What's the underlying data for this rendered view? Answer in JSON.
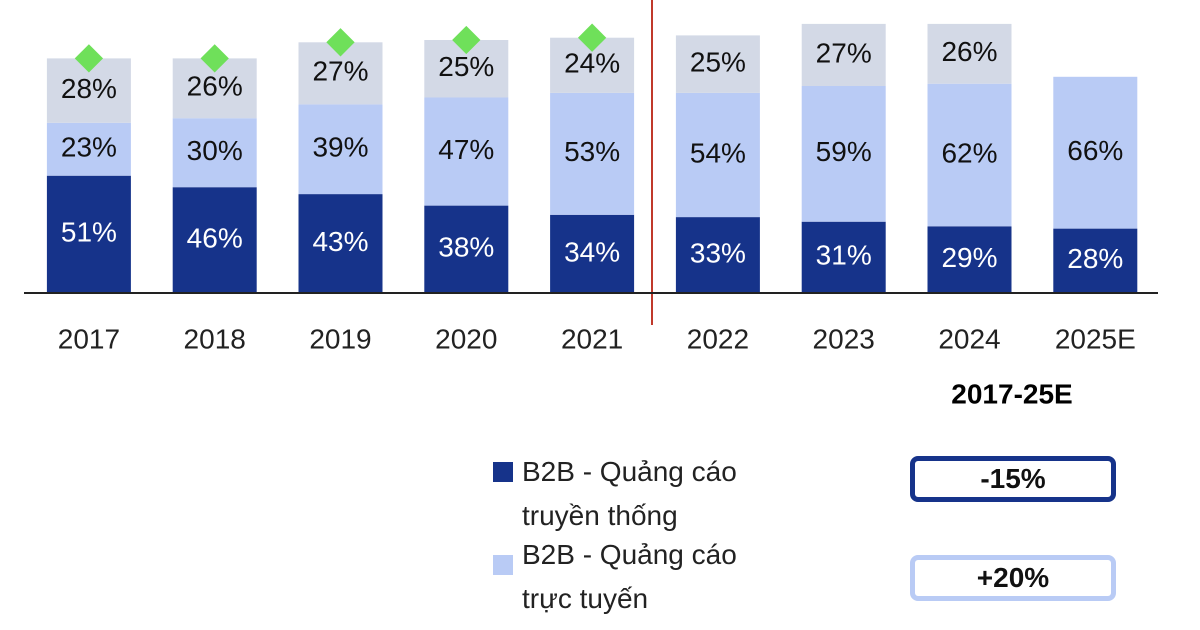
{
  "chart_data": {
    "type": "stacked_bar",
    "categories": [
      "2017",
      "2018",
      "2019",
      "2020",
      "2021",
      "2022",
      "2023",
      "2024",
      "2025E"
    ],
    "series": [
      {
        "name": "B2B - Quảng cáo truyền thống",
        "color": "#16338a",
        "label_color": "#ffffff",
        "values": [
          51,
          46,
          43,
          38,
          34,
          33,
          31,
          29,
          28
        ],
        "value_labels": [
          "51%",
          "46%",
          "43%",
          "38%",
          "34%",
          "33%",
          "31%",
          "29%",
          "28%"
        ]
      },
      {
        "name": "B2B - Quảng cáo trực tuyến",
        "color": "#b9cbf5",
        "label_color": "#111111",
        "values": [
          23,
          30,
          39,
          47,
          53,
          54,
          59,
          62,
          66
        ],
        "value_labels": [
          "23%",
          "30%",
          "39%",
          "47%",
          "53%",
          "54%",
          "59%",
          "62%",
          "66%"
        ]
      },
      {
        "color": "#d3d9e6",
        "label_color": "#111111",
        "values": [
          28,
          26,
          27,
          25,
          24,
          25,
          27,
          26,
          null
        ],
        "value_labels": [
          "28%",
          "26%",
          "27%",
          "25%",
          "24%",
          "25%",
          "27%",
          "26%",
          null
        ]
      }
    ],
    "annotations": {
      "period": "2017-25E",
      "change_traditional": "-15%",
      "change_online": "+20%"
    }
  }
}
